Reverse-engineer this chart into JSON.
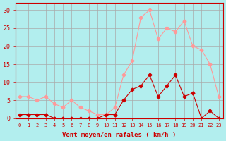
{
  "x": [
    0,
    1,
    2,
    3,
    4,
    5,
    6,
    7,
    8,
    9,
    10,
    11,
    12,
    13,
    14,
    15,
    16,
    17,
    18,
    19,
    20,
    21,
    22,
    23
  ],
  "y_moyen": [
    1,
    1,
    1,
    1,
    0,
    0,
    0,
    0,
    0,
    0,
    1,
    1,
    5,
    8,
    9,
    12,
    6,
    9,
    12,
    6,
    7,
    0,
    2,
    0
  ],
  "y_rafales": [
    6,
    6,
    5,
    6,
    4,
    3,
    5,
    3,
    2,
    1,
    1,
    3,
    12,
    16,
    28,
    30,
    22,
    25,
    24,
    27,
    20,
    19,
    15,
    6
  ],
  "color_moyen": "#cc0000",
  "color_rafales": "#ff9999",
  "bg_color": "#b2eeee",
  "grid_color": "#aaaaaa",
  "xlabel": "Vent moyen/en rafales ( km/h )",
  "ylabel_ticks": [
    0,
    5,
    10,
    15,
    20,
    25,
    30
  ],
  "xlim": [
    -0.5,
    23.5
  ],
  "ylim": [
    0,
    32
  ],
  "xlabel_color": "#cc0000",
  "tick_color": "#cc0000"
}
